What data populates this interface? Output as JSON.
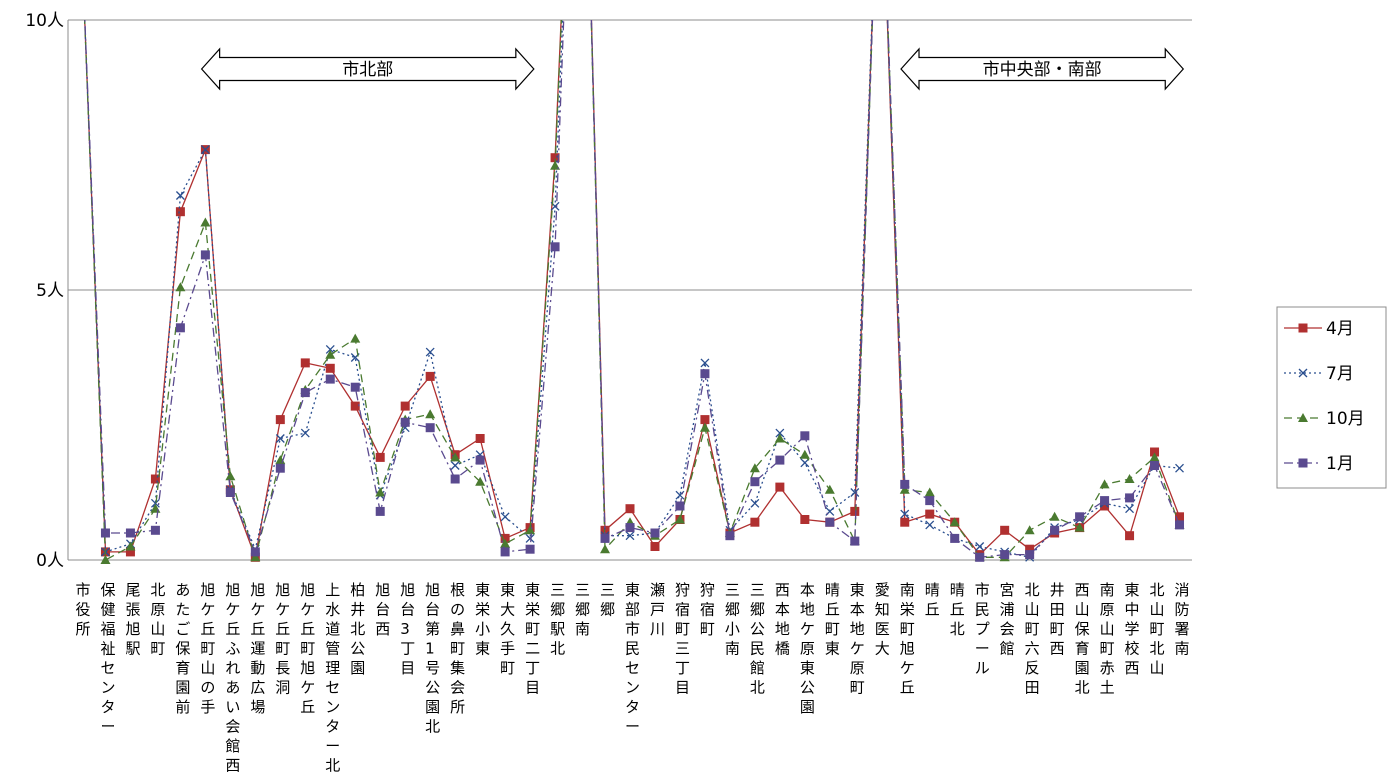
{
  "chart_data": {
    "type": "line",
    "title": "",
    "xlabel": "",
    "ylabel": "",
    "ylim": [
      0,
      10
    ],
    "yticks": [
      "0人",
      "5人",
      "10人"
    ],
    "grid": true,
    "legend_position": "right",
    "categories": [
      "市役所",
      "保健福祉センター",
      "尾張旭駅",
      "北原山町",
      "あたご保育園前",
      "旭ケ丘町山の手",
      "旭ケ丘ふれあい会館西",
      "旭ケ丘運動広場",
      "旭ケ丘町長洞",
      "旭ケ丘町旭ケ丘",
      "上水道管理センター北",
      "柏井北公園",
      "旭台西",
      "旭台3丁目",
      "旭台第1号公園北",
      "根の鼻町集会所",
      "東栄小東",
      "東大久手町",
      "東栄町二丁目",
      "三郷駅北",
      "三郷南",
      "三郷",
      "東部市民センター",
      "瀬戸川",
      "狩宿町三丁目",
      "狩宿町",
      "三郷小南",
      "三郷公民館北",
      "西本地橋",
      "本地ケ原東公園",
      "晴丘町東",
      "東本地ケ原町",
      "愛知医大",
      "南栄町旭ケ丘",
      "晴丘",
      "晴丘北",
      "市民プール",
      "宮浦会館",
      "北山町六反田",
      "井田町西",
      "西山保育園北",
      "南原山町赤土",
      "東中学校西",
      "北山町北山",
      "消防署南"
    ],
    "regions": [
      {
        "label": "市北部",
        "from": "旭ケ丘町山の手",
        "to": "東栄町二丁目"
      },
      {
        "label": "市中央部・南部",
        "from": "南栄町旭ケ丘",
        "to": "消防署南"
      }
    ],
    "series": [
      {
        "name": "4月",
        "color": "#b03030",
        "marker": "square",
        "dash": "solid",
        "values": [
          12,
          0.15,
          0.15,
          1.5,
          6.45,
          7.6,
          1.3,
          0.05,
          2.6,
          3.65,
          3.55,
          2.85,
          1.9,
          2.85,
          3.4,
          1.95,
          2.25,
          0.4,
          0.6,
          7.45,
          18,
          0.55,
          0.95,
          0.25,
          0.75,
          2.6,
          0.5,
          0.7,
          1.35,
          0.75,
          0.7,
          0.9,
          14,
          0.7,
          0.85,
          0.7,
          0.1,
          0.55,
          0.2,
          0.5,
          0.6,
          1.0,
          0.45,
          2.0,
          0.8
        ]
      },
      {
        "name": "7月",
        "color": "#2a4f8f",
        "marker": "x",
        "dash": "dotted",
        "values": [
          12,
          0.15,
          0.3,
          1.05,
          6.75,
          7.6,
          1.3,
          0.2,
          2.25,
          2.35,
          3.9,
          3.75,
          1.2,
          2.45,
          3.85,
          1.75,
          1.95,
          0.8,
          0.4,
          6.55,
          18,
          0.45,
          0.45,
          0.5,
          1.2,
          3.65,
          0.55,
          1.05,
          2.35,
          1.8,
          0.9,
          1.25,
          14,
          0.85,
          0.65,
          0.4,
          0.25,
          0.15,
          0.05,
          0.6,
          0.75,
          1.05,
          0.95,
          1.75,
          1.7
        ]
      },
      {
        "name": "10月",
        "color": "#4a7a30",
        "marker": "triangle",
        "dash": "dashed",
        "values": [
          12,
          0.0,
          0.25,
          0.95,
          5.05,
          6.25,
          1.55,
          0.05,
          1.85,
          3.15,
          3.8,
          4.1,
          1.25,
          2.6,
          2.7,
          1.9,
          1.45,
          0.3,
          0.55,
          7.3,
          18,
          0.2,
          0.7,
          0.45,
          0.75,
          2.45,
          0.5,
          1.7,
          2.25,
          1.95,
          1.3,
          0.35,
          14,
          1.3,
          1.25,
          0.7,
          0.05,
          0.05,
          0.55,
          0.8,
          0.6,
          1.4,
          1.5,
          1.9,
          0.65
        ]
      },
      {
        "name": "1月",
        "color": "#5a4a8f",
        "marker": "square",
        "dash": "dashdot",
        "values": [
          12,
          0.5,
          0.5,
          0.55,
          4.3,
          5.65,
          1.25,
          0.15,
          1.7,
          3.1,
          3.35,
          3.2,
          0.9,
          2.55,
          2.45,
          1.5,
          1.85,
          0.15,
          0.2,
          5.8,
          18,
          0.4,
          0.6,
          0.5,
          1.0,
          3.45,
          0.45,
          1.45,
          1.85,
          2.3,
          0.7,
          0.35,
          14,
          1.4,
          1.1,
          0.4,
          0.05,
          0.1,
          0.1,
          0.55,
          0.8,
          1.1,
          1.15,
          1.75,
          0.65
        ]
      }
    ]
  }
}
